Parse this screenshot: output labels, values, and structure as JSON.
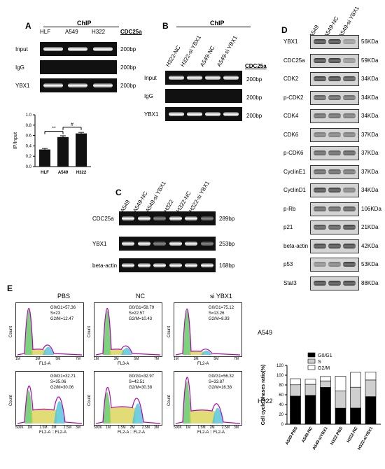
{
  "panelA": {
    "label": "A",
    "chip": "ChIP",
    "gene": "CDC25a",
    "lanes": [
      "HLF",
      "A549",
      "H322"
    ],
    "rows": [
      {
        "name": "Input",
        "size": "200bp",
        "bands": [
          1,
          1,
          1
        ]
      },
      {
        "name": "IgG",
        "size": "200bp",
        "bands": [
          0,
          0,
          0
        ]
      },
      {
        "name": "YBX1",
        "size": "200bp",
        "bands": [
          1,
          1,
          1
        ]
      }
    ],
    "sig1": "**",
    "sig2": "#"
  },
  "chart_data": {
    "type": "bar",
    "categories": [
      "HLF",
      "A549",
      "H322"
    ],
    "values": [
      0.33,
      0.57,
      0.64
    ],
    "errors": [
      0.02,
      0.025,
      0.02
    ],
    "ylabel": "IP/Input",
    "ylim": [
      0,
      1.0
    ],
    "yticks": [
      "0.0",
      "0.2",
      "0.4",
      "0.6",
      "0.8",
      "1.0"
    ]
  },
  "panelB": {
    "label": "B",
    "chip": "ChIP",
    "gene": "CDC25a",
    "lanes": [
      "H322-NC",
      "H322-si YBX1",
      "A549-NC",
      "A549-si YBX1"
    ],
    "rows": [
      {
        "name": "Input",
        "size": "200bp",
        "bands": [
          1,
          1,
          1,
          1
        ]
      },
      {
        "name": "IgG",
        "size": "200bp",
        "bands": [
          0,
          0,
          0,
          0
        ]
      },
      {
        "name": "YBX1",
        "size": "200bp",
        "bands": [
          1,
          1,
          1,
          1
        ]
      }
    ]
  },
  "panelC": {
    "label": "C",
    "lanes": [
      "A549",
      "A549-NC",
      "A549-si YBX1",
      "H322",
      "H322-NC",
      "H322-si YBX1"
    ],
    "rows": [
      {
        "name": "CDC25a",
        "size": "289bp",
        "bands": [
          1,
          1,
          0.5,
          1,
          1,
          0.5
        ]
      },
      {
        "name": "YBX1",
        "size": "253bp",
        "bands": [
          1,
          1,
          0.5,
          1,
          1,
          0.5
        ]
      },
      {
        "name": "beta-actin",
        "size": "168bp",
        "bands": [
          1,
          1,
          1,
          1,
          1,
          1
        ]
      }
    ]
  },
  "panelD": {
    "label": "D",
    "lanes": [
      "A549",
      "A549-NC",
      "A549-si YBX1"
    ],
    "rows": [
      {
        "name": "YBX1",
        "size": "56KDa"
      },
      {
        "name": "CDC25a",
        "size": "59KDa"
      },
      {
        "name": "CDK2",
        "size": "34KDa"
      },
      {
        "name": "p-CDK2",
        "size": "34KDa"
      },
      {
        "name": "CDK4",
        "size": "34KDa"
      },
      {
        "name": "CDK6",
        "size": "37KDa"
      },
      {
        "name": "p-CDK6",
        "size": "37KDa"
      },
      {
        "name": "CyclinE1",
        "size": "37KDa"
      },
      {
        "name": "CyclinD1",
        "size": "34KDa"
      },
      {
        "name": "p-Rb",
        "size": "106KDa"
      },
      {
        "name": "p21",
        "size": "21KDa"
      },
      {
        "name": "beta-actin",
        "size": "42KDa"
      },
      {
        "name": "p53",
        "size": "53KDa"
      },
      {
        "name": "Stat3",
        "size": "88KDa"
      }
    ]
  },
  "panelE": {
    "label": "E",
    "columns": [
      "PBS",
      "NC",
      "si YBX1"
    ],
    "rowLabels": [
      "A549",
      "H322"
    ],
    "ylabel": "Count",
    "plots": [
      {
        "g0": "G0/G1=57.36",
        "s": "S=23",
        "g2": "G2/M=12.47",
        "xlabel": "FL3-A",
        "ticks": [
          "1M",
          "3M",
          "5M",
          "7M"
        ]
      },
      {
        "g0": "G0/G1=58.79",
        "s": "S=22.57",
        "g2": "G2/M=10.43",
        "xlabel": "FL3-A",
        "ticks": [
          "1M",
          "3M",
          "5M",
          "7M"
        ]
      },
      {
        "g0": "G0/G1=75.12",
        "s": "S=13.26",
        "g2": "G2/M=8.93",
        "xlabel": "FL2-A",
        "ticks": [
          "1M",
          "3M",
          "5M",
          "7M"
        ]
      },
      {
        "g0": "G0/G1=32.71",
        "s": "S=35.06",
        "g2": "G2/M=30.06",
        "xlabel": "FL2-A :: FL2-A",
        "ticks": [
          "500K",
          "1M",
          "1.5M",
          "2M",
          "2.5M",
          "3M"
        ]
      },
      {
        "g0": "G0/G1=32.97",
        "s": "S=42.51",
        "g2": "G2/M=30.38",
        "xlabel": "FL2-A :: FL2-A",
        "ticks": [
          "500K",
          "1M",
          "1.5M",
          "2M",
          "2.5M",
          "3M"
        ]
      },
      {
        "g0": "G0/G1=56.32",
        "s": "S=33.87",
        "g2": "G2/M=16.38",
        "xlabel": "FL2-A :: FL2-A",
        "ticks": [
          "500K",
          "1M",
          "1.5M",
          "2M",
          "2.5M",
          "3M"
        ]
      }
    ]
  },
  "phases": {
    "ylabel": "Cell cycle phases ratio(%)",
    "legend": [
      "G0/G1",
      "S",
      "G2/M"
    ],
    "yticks": [
      "0",
      "20",
      "40",
      "60",
      "80",
      "100",
      "120"
    ],
    "categories": [
      "A549-PBS",
      "A549-NC",
      "A549-siYBX1",
      "H322-PBS",
      "H322-NC",
      "H322-siYBX1"
    ],
    "g0": [
      57.36,
      58.79,
      75.12,
      32.71,
      32.97,
      56.32
    ],
    "s": [
      23,
      22.57,
      13.26,
      35.06,
      42.51,
      33.87
    ],
    "g2m": [
      12.47,
      10.43,
      8.93,
      30.06,
      30.38,
      16.38
    ],
    "colors": [
      "#000000",
      "#cfcfcf",
      "#ffffff"
    ]
  }
}
